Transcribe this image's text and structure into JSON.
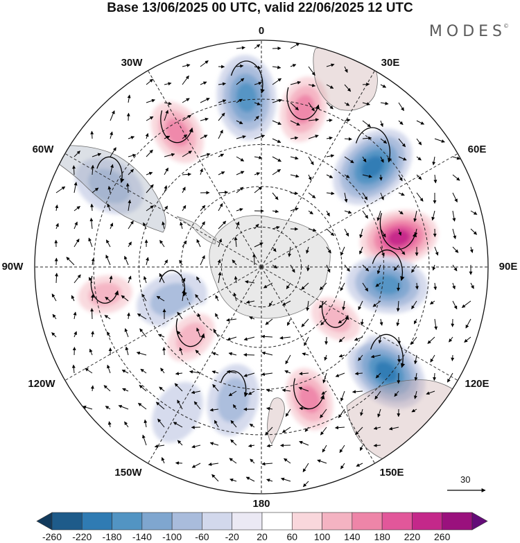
{
  "title": "Base 13/06/2025 00 UTC, valid 22/06/2025 12 UTC",
  "brand": {
    "text": "MODES",
    "mark": "©"
  },
  "longitude_labels": [
    {
      "text": "0",
      "id": "lon-0"
    },
    {
      "text": "30E",
      "id": "lon-30e"
    },
    {
      "text": "60E",
      "id": "lon-60e"
    },
    {
      "text": "90E",
      "id": "lon-90e"
    },
    {
      "text": "120E",
      "id": "lon-120e"
    },
    {
      "text": "150E",
      "id": "lon-150e"
    },
    {
      "text": "180",
      "id": "lon-180"
    },
    {
      "text": "150W",
      "id": "lon-150w"
    },
    {
      "text": "120W",
      "id": "lon-120w"
    },
    {
      "text": "90W",
      "id": "lon-90w"
    },
    {
      "text": "60W",
      "id": "lon-60w"
    },
    {
      "text": "30W",
      "id": "lon-30w"
    }
  ],
  "reference_vector": {
    "label": "30"
  },
  "colorbar": {
    "ticks": [
      "-260",
      "-220",
      "-180",
      "-140",
      "-100",
      "-60",
      "-20",
      "20",
      "60",
      "100",
      "140",
      "180",
      "220",
      "260"
    ],
    "colors": [
      "#123a5c",
      "#1e5b8a",
      "#2f7bb3",
      "#5294c3",
      "#7fa6cf",
      "#a9bcdc",
      "#d2d8ec",
      "#ebe9f4",
      "#ffffff",
      "#f9d7dc",
      "#f4b3c2",
      "#ee85a8",
      "#e2579a",
      "#c4288a",
      "#9a117d",
      "#640c78"
    ]
  },
  "map": {
    "projection": "south-polar-stereographic",
    "anomalies": [
      {
        "lon": 15,
        "r": 0.72,
        "value": 170
      },
      {
        "lon": -5,
        "r": 0.75,
        "value": -170
      },
      {
        "lon": -32,
        "r": 0.7,
        "value": 170
      },
      {
        "lon": -62,
        "r": 0.76,
        "value": -90
      },
      {
        "lon": 48,
        "r": 0.66,
        "value": -200
      },
      {
        "lon": 78,
        "r": 0.62,
        "value": 220
      },
      {
        "lon": 98,
        "r": 0.56,
        "value": -150
      },
      {
        "lon": 130,
        "r": 0.72,
        "value": -180
      },
      {
        "lon": 160,
        "r": 0.62,
        "value": 150
      },
      {
        "lon": 125,
        "r": 0.4,
        "value": 100
      },
      {
        "lon": -100,
        "r": 0.7,
        "value": 110
      },
      {
        "lon": -110,
        "r": 0.42,
        "value": -90
      },
      {
        "lon": -135,
        "r": 0.44,
        "value": 120
      },
      {
        "lon": -168,
        "r": 0.6,
        "value": -90
      },
      {
        "lon": -150,
        "r": 0.74,
        "value": -40
      },
      {
        "lon": 65,
        "r": 0.92,
        "value": 40
      }
    ]
  }
}
